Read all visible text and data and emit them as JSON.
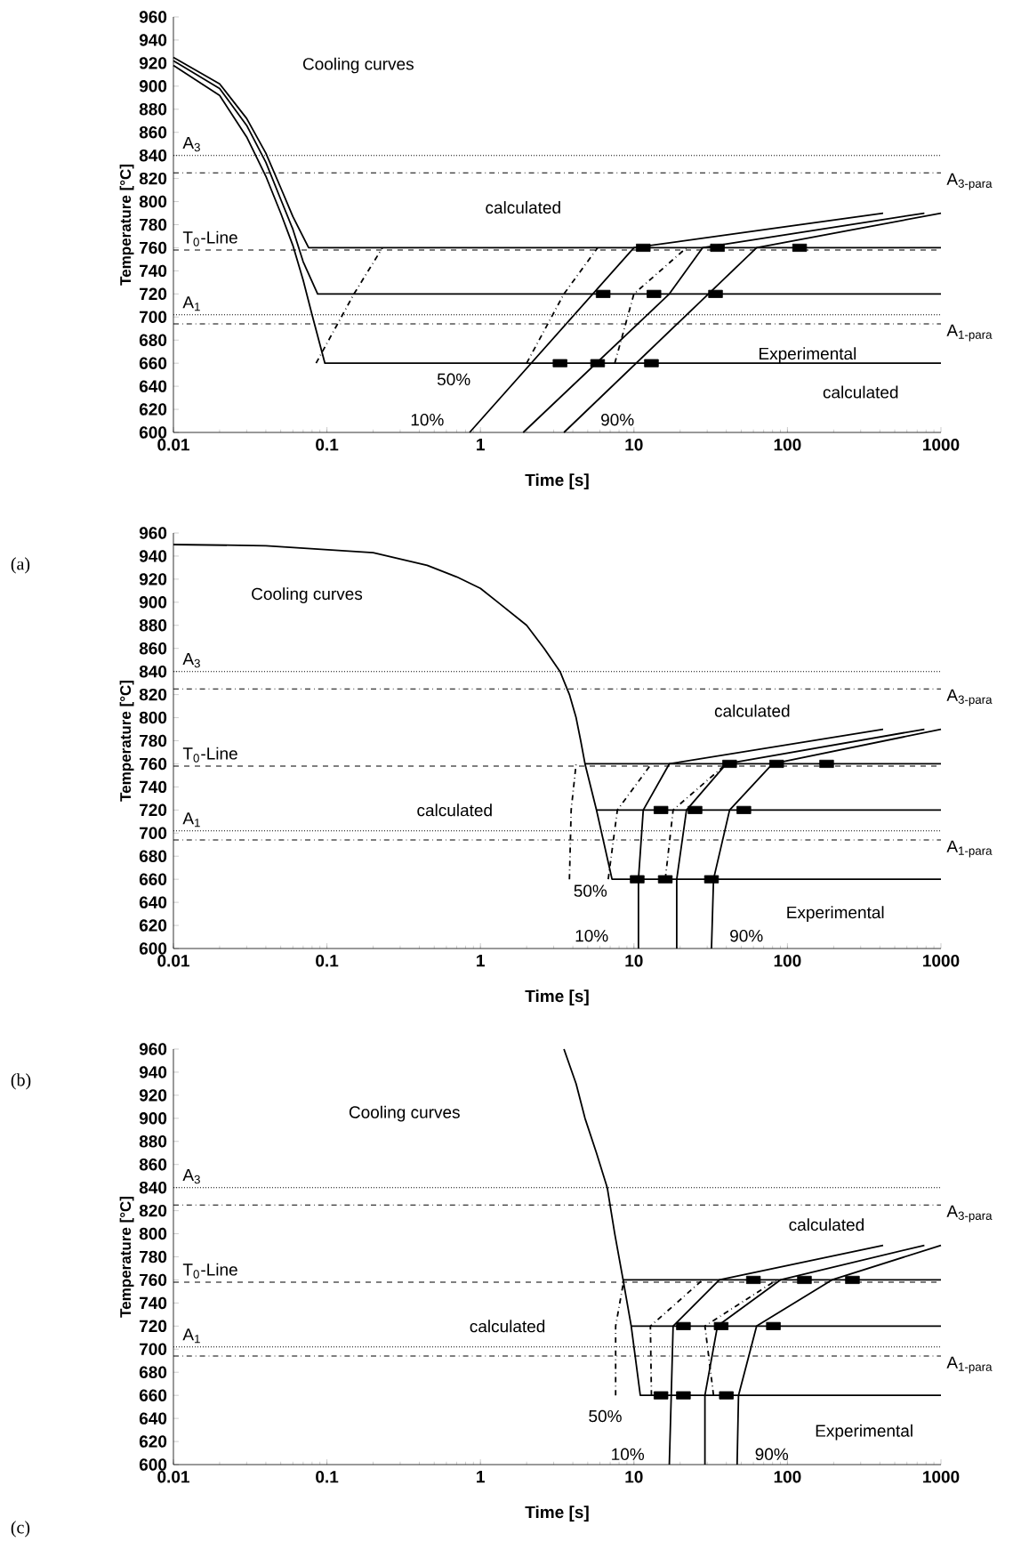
{
  "chart_data": [
    {
      "type": "line",
      "xlabel": "Time [s]",
      "ylabel": "Temperature [°C]",
      "log": "x",
      "xlim": [
        0.01,
        1000
      ],
      "xticks": [
        0.01,
        0.1,
        1,
        10,
        100,
        1000
      ],
      "ylim": [
        600,
        960
      ],
      "yticks": [
        600,
        620,
        640,
        660,
        680,
        700,
        720,
        740,
        760,
        780,
        800,
        820,
        840,
        860,
        880,
        900,
        920,
        940,
        960
      ],
      "series": [
        {
          "type": "line",
          "color": "#000000",
          "line_style": "solid",
          "x": [
            0.01,
            0.02,
            0.03,
            0.04,
            0.05,
            0.06,
            0.076,
            1000
          ],
          "values": [
            925,
            902,
            872,
            842,
            812,
            787,
            760,
            760
          ]
        },
        {
          "type": "line",
          "color": "#000000",
          "line_style": "solid",
          "x": [
            0.01,
            0.02,
            0.03,
            0.04,
            0.05,
            0.06,
            0.07,
            0.087,
            1000
          ],
          "values": [
            922,
            898,
            866,
            834,
            802,
            776,
            748,
            720,
            720
          ]
        },
        {
          "type": "line",
          "color": "#000000",
          "line_style": "solid",
          "x": [
            0.01,
            0.02,
            0.03,
            0.04,
            0.05,
            0.06,
            0.07,
            0.08,
            0.097,
            1000
          ],
          "values": [
            918,
            892,
            856,
            822,
            790,
            762,
            732,
            702,
            660,
            660
          ]
        },
        {
          "type": "line",
          "color": "#000000",
          "line_style": "dashdot",
          "x": [
            0.085,
            0.15,
            0.23
          ],
          "values": [
            660,
            720,
            760
          ]
        },
        {
          "type": "line",
          "color": "#000000",
          "line_style": "dashdot",
          "x": [
            2,
            3.5,
            5.8
          ],
          "values": [
            660,
            720,
            760
          ]
        },
        {
          "type": "line",
          "color": "#000000",
          "line_style": "dashdot",
          "x": [
            7.5,
            10,
            22
          ],
          "values": [
            660,
            720,
            760
          ]
        },
        {
          "type": "line",
          "color": "#000000",
          "line_style": "solid",
          "x": [
            0.85,
            10,
            420
          ],
          "values": [
            600,
            760,
            790
          ]
        },
        {
          "type": "line",
          "color": "#000000",
          "line_style": "solid",
          "x": [
            1.9,
            17,
            28,
            780
          ],
          "values": [
            600,
            720,
            760,
            790
          ]
        },
        {
          "type": "line",
          "color": "#000000",
          "line_style": "solid",
          "x": [
            3.5,
            63,
            1000
          ],
          "values": [
            600,
            760,
            790
          ]
        },
        {
          "type": "scatter",
          "color": "#000000",
          "marker": "square",
          "x": [
            3.3,
            5.8,
            13,
            6.3,
            13.5,
            34,
            11.5,
            35,
            120
          ],
          "values": [
            660,
            660,
            660,
            720,
            720,
            720,
            760,
            760,
            760
          ]
        }
      ],
      "ref_lines": [
        {
          "axis": "y",
          "value": 840,
          "label": "A$_{3}$",
          "line_style": "dotted"
        },
        {
          "axis": "y",
          "value": 825,
          "label": "A$_{3-para}$",
          "line_style": "dashdot"
        },
        {
          "axis": "y",
          "value": 758,
          "label": "T$_{0}$-Line",
          "line_style": "dashed"
        },
        {
          "axis": "y",
          "value": 702,
          "label": "A$_{1}$",
          "line_style": "dotted"
        },
        {
          "axis": "y",
          "value": 694,
          "label": "A$_{1-para}$",
          "line_style": "dashdot"
        }
      ],
      "annotations": [
        "Cooling curves",
        "calculated",
        "Experimental",
        "calculated",
        "50%",
        "10%",
        "90%",
        "(a)"
      ]
    },
    {
      "type": "line",
      "xlabel": "Time [s]",
      "ylabel": "Temperature [°C]",
      "log": "x",
      "xlim": [
        0.01,
        1000
      ],
      "xticks": [
        0.01,
        0.1,
        1,
        10,
        100,
        1000
      ],
      "ylim": [
        600,
        960
      ],
      "yticks": [
        600,
        620,
        640,
        660,
        680,
        700,
        720,
        740,
        760,
        780,
        800,
        820,
        840,
        860,
        880,
        900,
        920,
        940,
        960
      ],
      "series": [
        {
          "color": "#000000",
          "line_style": "solid",
          "x": [
            0.01,
            0.04,
            0.2,
            0.45,
            0.7,
            1,
            1.3,
            2,
            2.6,
            3.3,
            3.8,
            4.2,
            4.5,
            4.8,
            5.7,
            7.2,
            1000
          ],
          "values": [
            950,
            949,
            943,
            932,
            922,
            912,
            900,
            880,
            860,
            840,
            820,
            800,
            780,
            760,
            720,
            660,
            660
          ]
        },
        {
          "type": "line",
          "color": "#000000",
          "line_style": "solid",
          "x": [
            4.8,
            1000
          ],
          "values": [
            760,
            760
          ]
        },
        {
          "type": "line",
          "color": "#000000",
          "line_style": "solid",
          "x": [
            5.7,
            1000
          ],
          "values": [
            720,
            720
          ]
        },
        {
          "type": "line",
          "color": "#000000",
          "line_style": "dashdot",
          "x": [
            3.8,
            3.9,
            4.2
          ],
          "values": [
            660,
            720,
            760
          ]
        },
        {
          "type": "line",
          "color": "#000000",
          "line_style": "dashdot",
          "x": [
            6.8,
            7.8,
            13
          ],
          "values": [
            660,
            720,
            760
          ]
        },
        {
          "type": "line",
          "color": "#000000",
          "line_style": "dashdot",
          "x": [
            16,
            18,
            40
          ],
          "values": [
            660,
            720,
            760
          ]
        },
        {
          "type": "line",
          "color": "#000000",
          "line_style": "solid",
          "x": [
            10.7,
            10.7,
            11.5,
            17,
            420
          ],
          "values": [
            600,
            660,
            720,
            760,
            790
          ]
        },
        {
          "type": "line",
          "color": "#000000",
          "line_style": "solid",
          "x": [
            19,
            19,
            22,
            40,
            780
          ],
          "values": [
            600,
            660,
            720,
            760,
            790
          ]
        },
        {
          "type": "line",
          "color": "#000000",
          "line_style": "solid",
          "x": [
            32,
            33,
            42,
            80,
            1000
          ],
          "values": [
            600,
            660,
            720,
            760,
            790
          ]
        },
        {
          "type": "scatter",
          "color": "#000000",
          "marker": "square",
          "x": [
            10.5,
            16,
            32,
            15,
            25,
            52,
            42,
            85,
            180
          ],
          "values": [
            660,
            660,
            660,
            720,
            720,
            720,
            760,
            760,
            760
          ]
        }
      ],
      "ref_lines": [
        {
          "axis": "y",
          "value": 840,
          "label": "A$_{3}$",
          "line_style": "dotted"
        },
        {
          "axis": "y",
          "value": 825,
          "label": "A$_{3-para}$",
          "line_style": "dashdot"
        },
        {
          "axis": "y",
          "value": 758,
          "label": "T$_{0}$-Line",
          "line_style": "dashed"
        },
        {
          "axis": "y",
          "value": 702,
          "label": "A$_{1}$",
          "line_style": "dotted"
        },
        {
          "axis": "y",
          "value": 694,
          "label": "A$_{1-para}$",
          "line_style": "dashdot"
        }
      ],
      "annotations": [
        "Cooling curves",
        "calculated",
        "calculated",
        "Experimental",
        "50%",
        "10%",
        "90%",
        "(b)"
      ]
    },
    {
      "type": "line",
      "xlabel": "Time [s]",
      "ylabel": "Temperature [°C]",
      "log": "x",
      "xlim": [
        0.01,
        1000
      ],
      "xticks": [
        0.01,
        0.1,
        1,
        10,
        100,
        1000
      ],
      "ylim": [
        600,
        960
      ],
      "yticks": [
        600,
        620,
        640,
        660,
        680,
        700,
        720,
        740,
        760,
        780,
        800,
        820,
        840,
        860,
        880,
        900,
        920,
        940,
        960
      ],
      "series": [
        {
          "type": "line",
          "color": "#000000",
          "line_style": "solid",
          "x": [
            3.5,
            4.2,
            4.8,
            5.7,
            6.7,
            7.5,
            8.5,
            9.6,
            11,
            1000
          ],
          "values": [
            960,
            930,
            900,
            870,
            840,
            800,
            760,
            720,
            660,
            660
          ]
        },
        {
          "type": "line",
          "color": "#000000",
          "line_style": "solid",
          "x": [
            8.5,
            1000
          ],
          "values": [
            760,
            760
          ]
        },
        {
          "type": "line",
          "color": "#000000",
          "line_style": "solid",
          "x": [
            9.6,
            1000
          ],
          "values": [
            720,
            720
          ]
        },
        {
          "type": "line",
          "color": "#000000",
          "line_style": "dashdot",
          "x": [
            7.6,
            7.6,
            8.6
          ],
          "values": [
            660,
            720,
            760
          ]
        },
        {
          "type": "line",
          "color": "#000000",
          "line_style": "dashdot",
          "x": [
            13,
            12.8,
            28
          ],
          "values": [
            660,
            720,
            760
          ]
        },
        {
          "type": "line",
          "color": "#000000",
          "line_style": "dashdot",
          "x": [
            33,
            29,
            85
          ],
          "values": [
            660,
            720,
            760
          ]
        },
        {
          "type": "line",
          "color": "#000000",
          "line_style": "solid",
          "x": [
            17,
            17.5,
            18,
            36,
            420
          ],
          "values": [
            600,
            660,
            720,
            760,
            790
          ]
        },
        {
          "type": "line",
          "color": "#000000",
          "line_style": "solid",
          "x": [
            29,
            29,
            35,
            90,
            780
          ],
          "values": [
            600,
            660,
            720,
            760,
            790
          ]
        },
        {
          "type": "line",
          "color": "#000000",
          "line_style": "solid",
          "x": [
            47,
            48,
            63,
            195,
            1000
          ],
          "values": [
            600,
            660,
            720,
            760,
            790
          ]
        },
        {
          "type": "scatter",
          "color": "#000000",
          "marker": "square",
          "x": [
            15,
            21,
            40,
            21,
            37,
            81,
            60,
            129,
            265
          ],
          "values": [
            660,
            660,
            660,
            720,
            720,
            720,
            760,
            760,
            760
          ]
        }
      ],
      "ref_lines": [
        {
          "axis": "y",
          "value": 840,
          "label": "A$_{3}$",
          "line_style": "dotted"
        },
        {
          "axis": "y",
          "value": 825,
          "label": "A$_{3-para}$",
          "line_style": "dashdot"
        },
        {
          "axis": "y",
          "value": 758,
          "label": "T$_{0}$-Line",
          "line_style": "dashed"
        },
        {
          "axis": "y",
          "value": 702,
          "label": "A$_{1}$",
          "line_style": "dotted"
        },
        {
          "axis": "y",
          "value": 694,
          "label": "A$_{1-para}$",
          "line_style": "dashdot"
        }
      ],
      "annotations": [
        "Cooling curves",
        "calculated",
        "calculated",
        "Experimental",
        "50%",
        "10%",
        "90%",
        "(c)"
      ]
    }
  ]
}
